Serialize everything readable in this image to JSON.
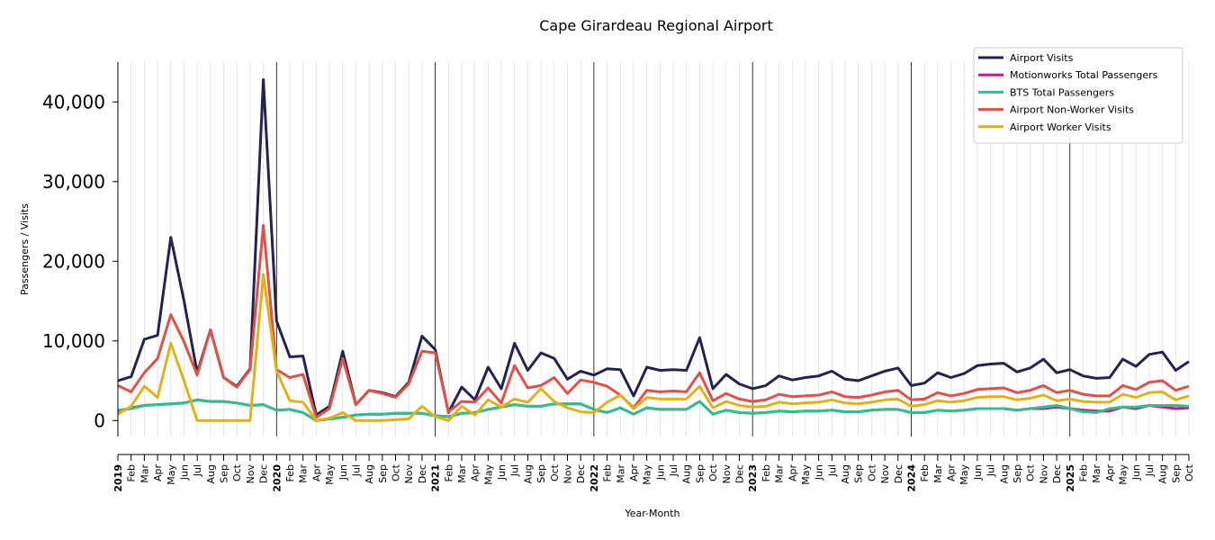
{
  "chart_data": {
    "type": "line",
    "title": "Cape Girardeau Regional Airport",
    "xlabel": "Year-Month",
    "ylabel": "Passengers / Visits",
    "ylim": [
      -2000,
      45000
    ],
    "yticks": [
      0,
      10000,
      20000,
      30000,
      40000
    ],
    "ytick_labels": [
      "0",
      "10,000",
      "20,000",
      "30,000",
      "40,000"
    ],
    "grid": "vertical monthly lines; darker line at each January",
    "legend_position": "top-right",
    "x": [
      "2019",
      "Feb",
      "Mar",
      "Apr",
      "May",
      "Jun",
      "Jul",
      "Aug",
      "Sep",
      "Oct",
      "Nov",
      "Dec",
      "2020",
      "Feb",
      "Mar",
      "Apr",
      "May",
      "Jun",
      "Jul",
      "Aug",
      "Sep",
      "Oct",
      "Nov",
      "Dec",
      "2021",
      "Feb",
      "Mar",
      "Apr",
      "May",
      "Jun",
      "Jul",
      "Aug",
      "Sep",
      "Oct",
      "Nov",
      "Dec",
      "2022",
      "Feb",
      "Mar",
      "Apr",
      "May",
      "Jun",
      "Jul",
      "Aug",
      "Sep",
      "Oct",
      "Nov",
      "Dec",
      "2023",
      "Feb",
      "Mar",
      "Apr",
      "May",
      "Jun",
      "Jul",
      "Aug",
      "Sep",
      "Oct",
      "Nov",
      "Dec",
      "2024",
      "Feb",
      "Mar",
      "Apr",
      "May",
      "Jun",
      "Jul",
      "Aug",
      "Sep",
      "Oct",
      "Nov",
      "Dec",
      "2025",
      "Feb",
      "Mar",
      "Apr",
      "May",
      "Jun",
      "Jul",
      "Aug",
      "Sep",
      "Oct"
    ],
    "series": [
      {
        "name": "Airport Visits",
        "color": "#22234f",
        "values": [
          5000,
          5500,
          10200,
          10700,
          23000,
          15000,
          6000,
          11400,
          5400,
          4300,
          6500,
          42800,
          12500,
          8000,
          8100,
          700,
          1800,
          8700,
          2000,
          3800,
          3500,
          3000,
          4800,
          10600,
          8900,
          1000,
          4200,
          2600,
          6700,
          4000,
          9700,
          6300,
          8500,
          7800,
          5200,
          6200,
          5700,
          6500,
          6400,
          3100,
          6700,
          6300,
          6400,
          6300,
          10400,
          4000,
          5800,
          4600,
          4000,
          4400,
          5600,
          5100,
          5400,
          5600,
          6200,
          5200,
          5000,
          5600,
          6200,
          6600,
          4400,
          4700,
          6000,
          5400,
          5900,
          6900,
          7100,
          7200,
          6100,
          6600,
          7700,
          6000,
          6400,
          5600,
          5300,
          5400,
          7700,
          6800,
          8300,
          8600,
          6300,
          7400
        ]
      },
      {
        "name": "Motionworks Total Passengers",
        "color": "#c51b8a",
        "values": [
          1000,
          1600,
          1900,
          2000,
          2100,
          2200,
          2600,
          2400,
          2400,
          2200,
          1900,
          2000,
          1300,
          1400,
          1000,
          0,
          200,
          400,
          700,
          800,
          800,
          900,
          900,
          900,
          600,
          500,
          900,
          1000,
          1400,
          1700,
          2000,
          1800,
          1800,
          2100,
          2100,
          2100,
          1400,
          1000,
          1600,
          800,
          1600,
          1400,
          1400,
          1400,
          2400,
          800,
          1300,
          1000,
          900,
          1000,
          1200,
          1100,
          1200,
          1200,
          1300,
          1100,
          1100,
          1300,
          1400,
          1400,
          1000,
          1000,
          1300,
          1200,
          1300,
          1500,
          1500,
          1500,
          1300,
          1500,
          1500,
          1700,
          1500,
          1300,
          1200,
          1200,
          1700,
          1500,
          1900,
          1700,
          1500,
          1600
        ]
      },
      {
        "name": "BTS Total Passengers",
        "color": "#2ec18a",
        "values": [
          1300,
          1500,
          1900,
          2000,
          2100,
          2200,
          2600,
          2400,
          2400,
          2200,
          1900,
          2000,
          1300,
          1400,
          1000,
          0,
          200,
          400,
          700,
          800,
          800,
          900,
          900,
          900,
          600,
          500,
          900,
          1000,
          1400,
          1700,
          2000,
          1800,
          1800,
          2100,
          2100,
          2100,
          1400,
          1000,
          1600,
          800,
          1600,
          1400,
          1400,
          1400,
          2400,
          800,
          1300,
          1000,
          900,
          1000,
          1200,
          1100,
          1200,
          1200,
          1300,
          1100,
          1100,
          1300,
          1400,
          1400,
          1000,
          1000,
          1300,
          1200,
          1300,
          1500,
          1500,
          1500,
          1300,
          1500,
          1700,
          1900,
          1500,
          1100,
          1000,
          1500,
          1700,
          1700,
          1900,
          1900,
          1900,
          1800
        ]
      },
      {
        "name": "Airport Non-Worker Visits",
        "color": "#e05149",
        "values": [
          4400,
          3600,
          6000,
          7800,
          13300,
          9900,
          5700,
          11400,
          5400,
          4200,
          6400,
          24500,
          6400,
          5400,
          5800,
          400,
          1500,
          7800,
          2000,
          3800,
          3400,
          2900,
          4600,
          8700,
          8500,
          1100,
          2400,
          2300,
          4100,
          2200,
          6900,
          4100,
          4400,
          5400,
          3400,
          5100,
          4800,
          4300,
          3200,
          1600,
          3800,
          3600,
          3700,
          3600,
          6000,
          2500,
          3400,
          2700,
          2400,
          2600,
          3300,
          3000,
          3100,
          3200,
          3600,
          3000,
          2900,
          3200,
          3600,
          3800,
          2600,
          2700,
          3500,
          3100,
          3400,
          3900,
          4000,
          4100,
          3500,
          3800,
          4400,
          3500,
          3800,
          3300,
          3100,
          3100,
          4400,
          3900,
          4800,
          5000,
          3800,
          4300
        ]
      },
      {
        "name": "Airport Worker Visits",
        "color": "#e1b218",
        "values": [
          800,
          1800,
          4300,
          2900,
          9700,
          5000,
          0,
          0,
          0,
          0,
          0,
          18300,
          6200,
          2500,
          2300,
          0,
          300,
          1000,
          0,
          0,
          0,
          100,
          200,
          1800,
          500,
          0,
          1800,
          700,
          2600,
          1700,
          2700,
          2300,
          4000,
          2400,
          1600,
          1100,
          1000,
          2300,
          3200,
          1500,
          2900,
          2700,
          2700,
          2700,
          4300,
          1600,
          2400,
          1900,
          1700,
          1800,
          2300,
          2100,
          2200,
          2300,
          2600,
          2200,
          2100,
          2300,
          2600,
          2700,
          1800,
          2000,
          2500,
          2300,
          2500,
          2900,
          3000,
          3000,
          2600,
          2800,
          3200,
          2500,
          2700,
          2400,
          2300,
          2300,
          3300,
          2900,
          3500,
          3600,
          2600,
          3100
        ]
      }
    ]
  }
}
